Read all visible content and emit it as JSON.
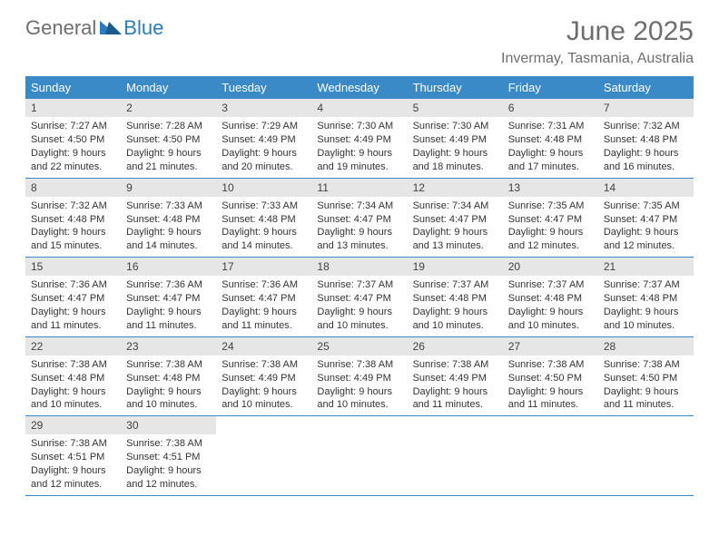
{
  "logo": {
    "general": "General",
    "blue": "Blue"
  },
  "title": "June 2025",
  "location": "Invermay, Tasmania, Australia",
  "colors": {
    "header_bg": "#3a8ac7",
    "header_text": "#ffffff",
    "daynum_bg": "#e6e6e6",
    "border": "#3a8ac7",
    "text": "#333333",
    "logo_gray": "#6d6e70",
    "logo_blue": "#2b7bbf",
    "page_bg": "#ffffff"
  },
  "typography": {
    "title_fontsize": 30,
    "location_fontsize": 16,
    "dayheader_fontsize": 13,
    "cell_fontsize": 11,
    "logo_fontsize": 22
  },
  "day_names": [
    "Sunday",
    "Monday",
    "Tuesday",
    "Wednesday",
    "Thursday",
    "Friday",
    "Saturday"
  ],
  "weeks": [
    [
      {
        "num": "1",
        "sunrise": "Sunrise: 7:27 AM",
        "sunset": "Sunset: 4:50 PM",
        "daylight": "Daylight: 9 hours and 22 minutes."
      },
      {
        "num": "2",
        "sunrise": "Sunrise: 7:28 AM",
        "sunset": "Sunset: 4:50 PM",
        "daylight": "Daylight: 9 hours and 21 minutes."
      },
      {
        "num": "3",
        "sunrise": "Sunrise: 7:29 AM",
        "sunset": "Sunset: 4:49 PM",
        "daylight": "Daylight: 9 hours and 20 minutes."
      },
      {
        "num": "4",
        "sunrise": "Sunrise: 7:30 AM",
        "sunset": "Sunset: 4:49 PM",
        "daylight": "Daylight: 9 hours and 19 minutes."
      },
      {
        "num": "5",
        "sunrise": "Sunrise: 7:30 AM",
        "sunset": "Sunset: 4:49 PM",
        "daylight": "Daylight: 9 hours and 18 minutes."
      },
      {
        "num": "6",
        "sunrise": "Sunrise: 7:31 AM",
        "sunset": "Sunset: 4:48 PM",
        "daylight": "Daylight: 9 hours and 17 minutes."
      },
      {
        "num": "7",
        "sunrise": "Sunrise: 7:32 AM",
        "sunset": "Sunset: 4:48 PM",
        "daylight": "Daylight: 9 hours and 16 minutes."
      }
    ],
    [
      {
        "num": "8",
        "sunrise": "Sunrise: 7:32 AM",
        "sunset": "Sunset: 4:48 PM",
        "daylight": "Daylight: 9 hours and 15 minutes."
      },
      {
        "num": "9",
        "sunrise": "Sunrise: 7:33 AM",
        "sunset": "Sunset: 4:48 PM",
        "daylight": "Daylight: 9 hours and 14 minutes."
      },
      {
        "num": "10",
        "sunrise": "Sunrise: 7:33 AM",
        "sunset": "Sunset: 4:48 PM",
        "daylight": "Daylight: 9 hours and 14 minutes."
      },
      {
        "num": "11",
        "sunrise": "Sunrise: 7:34 AM",
        "sunset": "Sunset: 4:47 PM",
        "daylight": "Daylight: 9 hours and 13 minutes."
      },
      {
        "num": "12",
        "sunrise": "Sunrise: 7:34 AM",
        "sunset": "Sunset: 4:47 PM",
        "daylight": "Daylight: 9 hours and 13 minutes."
      },
      {
        "num": "13",
        "sunrise": "Sunrise: 7:35 AM",
        "sunset": "Sunset: 4:47 PM",
        "daylight": "Daylight: 9 hours and 12 minutes."
      },
      {
        "num": "14",
        "sunrise": "Sunrise: 7:35 AM",
        "sunset": "Sunset: 4:47 PM",
        "daylight": "Daylight: 9 hours and 12 minutes."
      }
    ],
    [
      {
        "num": "15",
        "sunrise": "Sunrise: 7:36 AM",
        "sunset": "Sunset: 4:47 PM",
        "daylight": "Daylight: 9 hours and 11 minutes."
      },
      {
        "num": "16",
        "sunrise": "Sunrise: 7:36 AM",
        "sunset": "Sunset: 4:47 PM",
        "daylight": "Daylight: 9 hours and 11 minutes."
      },
      {
        "num": "17",
        "sunrise": "Sunrise: 7:36 AM",
        "sunset": "Sunset: 4:47 PM",
        "daylight": "Daylight: 9 hours and 11 minutes."
      },
      {
        "num": "18",
        "sunrise": "Sunrise: 7:37 AM",
        "sunset": "Sunset: 4:47 PM",
        "daylight": "Daylight: 9 hours and 10 minutes."
      },
      {
        "num": "19",
        "sunrise": "Sunrise: 7:37 AM",
        "sunset": "Sunset: 4:48 PM",
        "daylight": "Daylight: 9 hours and 10 minutes."
      },
      {
        "num": "20",
        "sunrise": "Sunrise: 7:37 AM",
        "sunset": "Sunset: 4:48 PM",
        "daylight": "Daylight: 9 hours and 10 minutes."
      },
      {
        "num": "21",
        "sunrise": "Sunrise: 7:37 AM",
        "sunset": "Sunset: 4:48 PM",
        "daylight": "Daylight: 9 hours and 10 minutes."
      }
    ],
    [
      {
        "num": "22",
        "sunrise": "Sunrise: 7:38 AM",
        "sunset": "Sunset: 4:48 PM",
        "daylight": "Daylight: 9 hours and 10 minutes."
      },
      {
        "num": "23",
        "sunrise": "Sunrise: 7:38 AM",
        "sunset": "Sunset: 4:48 PM",
        "daylight": "Daylight: 9 hours and 10 minutes."
      },
      {
        "num": "24",
        "sunrise": "Sunrise: 7:38 AM",
        "sunset": "Sunset: 4:49 PM",
        "daylight": "Daylight: 9 hours and 10 minutes."
      },
      {
        "num": "25",
        "sunrise": "Sunrise: 7:38 AM",
        "sunset": "Sunset: 4:49 PM",
        "daylight": "Daylight: 9 hours and 10 minutes."
      },
      {
        "num": "26",
        "sunrise": "Sunrise: 7:38 AM",
        "sunset": "Sunset: 4:49 PM",
        "daylight": "Daylight: 9 hours and 11 minutes."
      },
      {
        "num": "27",
        "sunrise": "Sunrise: 7:38 AM",
        "sunset": "Sunset: 4:50 PM",
        "daylight": "Daylight: 9 hours and 11 minutes."
      },
      {
        "num": "28",
        "sunrise": "Sunrise: 7:38 AM",
        "sunset": "Sunset: 4:50 PM",
        "daylight": "Daylight: 9 hours and 11 minutes."
      }
    ],
    [
      {
        "num": "29",
        "sunrise": "Sunrise: 7:38 AM",
        "sunset": "Sunset: 4:51 PM",
        "daylight": "Daylight: 9 hours and 12 minutes."
      },
      {
        "num": "30",
        "sunrise": "Sunrise: 7:38 AM",
        "sunset": "Sunset: 4:51 PM",
        "daylight": "Daylight: 9 hours and 12 minutes."
      },
      null,
      null,
      null,
      null,
      null
    ]
  ]
}
